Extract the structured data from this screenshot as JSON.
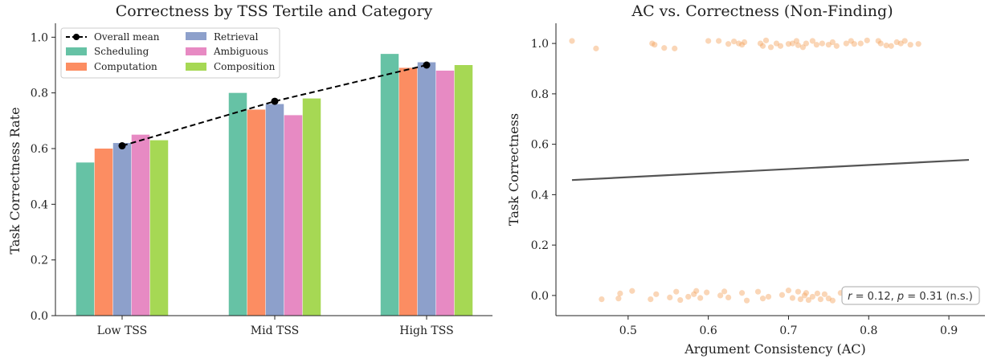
{
  "chart_data": [
    {
      "type": "bar",
      "title": "Correctness by TSS Tertile and Category",
      "xlabel": "",
      "ylabel": "Task Correctness Rate",
      "ylim": [
        0,
        1.05
      ],
      "yticks": [
        "0.0",
        "0.2",
        "0.4",
        "0.6",
        "0.8",
        "1.0"
      ],
      "categories": [
        "Low TSS",
        "Mid TSS",
        "High TSS"
      ],
      "series": [
        {
          "name": "Scheduling",
          "color": "#66c2a5",
          "values": [
            0.55,
            0.8,
            0.94
          ]
        },
        {
          "name": "Computation",
          "color": "#fc8d62",
          "values": [
            0.6,
            0.74,
            0.89
          ]
        },
        {
          "name": "Retrieval",
          "color": "#8da0cb",
          "values": [
            0.62,
            0.76,
            0.91
          ]
        },
        {
          "name": "Ambiguous",
          "color": "#e78ac3",
          "values": [
            0.65,
            0.72,
            0.88
          ]
        },
        {
          "name": "Composition",
          "color": "#a6d854",
          "values": [
            0.63,
            0.78,
            0.9
          ]
        }
      ],
      "overlay_line": {
        "name": "Overall mean",
        "color": "#000000",
        "style": "dashed",
        "values": [
          0.61,
          0.77,
          0.9
        ]
      },
      "legend_placement": "top-left",
      "legend_columns": 2
    },
    {
      "type": "scatter",
      "title": "AC vs. Correctness (Non-Finding)",
      "xlabel": "Argument Consistency (AC)",
      "ylabel": "Task Correctness",
      "xlim": [
        0.41,
        0.945
      ],
      "ylim": [
        -0.08,
        1.08
      ],
      "xticks": [
        "0.5",
        "0.6",
        "0.7",
        "0.8",
        "0.9"
      ],
      "yticks": [
        "0.0",
        "0.2",
        "0.4",
        "0.6",
        "0.8",
        "1.0"
      ],
      "point_color": "#f4a460",
      "line_color": "#555555",
      "points_top": [
        [
          0.43,
          1.01
        ],
        [
          0.46,
          0.98
        ],
        [
          0.53,
          1.0
        ],
        [
          0.533,
          0.995
        ],
        [
          0.545,
          0.982
        ],
        [
          0.558,
          0.98
        ],
        [
          0.6,
          1.01
        ],
        [
          0.613,
          1.01
        ],
        [
          0.625,
          0.998
        ],
        [
          0.632,
          1.008
        ],
        [
          0.638,
          1.0
        ],
        [
          0.642,
          0.995
        ],
        [
          0.645,
          1.005
        ],
        [
          0.665,
          1.0
        ],
        [
          0.668,
          0.99
        ],
        [
          0.672,
          1.012
        ],
        [
          0.678,
          0.985
        ],
        [
          0.685,
          1.0
        ],
        [
          0.69,
          0.99
        ],
        [
          0.7,
          0.998
        ],
        [
          0.705,
          1.0
        ],
        [
          0.71,
          1.01
        ],
        [
          0.712,
          0.993
        ],
        [
          0.718,
          0.985
        ],
        [
          0.722,
          1.0
        ],
        [
          0.73,
          1.01
        ],
        [
          0.735,
          0.995
        ],
        [
          0.742,
          1.0
        ],
        [
          0.75,
          0.995
        ],
        [
          0.755,
          1.005
        ],
        [
          0.76,
          0.99
        ],
        [
          0.772,
          1.0
        ],
        [
          0.778,
          1.01
        ],
        [
          0.782,
          0.998
        ],
        [
          0.79,
          1.0
        ],
        [
          0.798,
          1.012
        ],
        [
          0.812,
          1.01
        ],
        [
          0.815,
          1.0
        ],
        [
          0.822,
          0.992
        ],
        [
          0.828,
          0.99
        ],
        [
          0.835,
          1.005
        ],
        [
          0.84,
          1.0
        ],
        [
          0.845,
          1.01
        ],
        [
          0.852,
          0.995
        ],
        [
          0.862,
          0.998
        ]
      ],
      "points_bottom": [
        [
          0.467,
          -0.015
        ],
        [
          0.488,
          -0.012
        ],
        [
          0.49,
          0.008
        ],
        [
          0.505,
          0.018
        ],
        [
          0.528,
          -0.015
        ],
        [
          0.535,
          0.005
        ],
        [
          0.552,
          -0.008
        ],
        [
          0.56,
          0.015
        ],
        [
          0.565,
          -0.018
        ],
        [
          0.575,
          -0.005
        ],
        [
          0.582,
          0.005
        ],
        [
          0.585,
          0.018
        ],
        [
          0.59,
          -0.01
        ],
        [
          0.598,
          0.012
        ],
        [
          0.615,
          0.0
        ],
        [
          0.62,
          0.016
        ],
        [
          0.625,
          -0.008
        ],
        [
          0.642,
          0.01
        ],
        [
          0.648,
          -0.02
        ],
        [
          0.662,
          0.015
        ],
        [
          0.668,
          -0.012
        ],
        [
          0.675,
          -0.005
        ],
        [
          0.692,
          0.002
        ],
        [
          0.7,
          0.02
        ],
        [
          0.705,
          -0.01
        ],
        [
          0.712,
          0.015
        ],
        [
          0.715,
          -0.015
        ],
        [
          0.72,
          0.0
        ],
        [
          0.722,
          0.01
        ],
        [
          0.725,
          -0.018
        ],
        [
          0.73,
          -0.005
        ],
        [
          0.736,
          0.008
        ],
        [
          0.74,
          -0.015
        ],
        [
          0.745,
          0.005
        ],
        [
          0.75,
          -0.012
        ],
        [
          0.755,
          -0.02
        ],
        [
          0.765,
          0.01
        ],
        [
          0.772,
          -0.005
        ]
      ],
      "trend_line": [
        [
          0.43,
          0.458
        ],
        [
          0.925,
          0.538
        ]
      ],
      "annotation": {
        "r": "0.12",
        "p": "0.31",
        "note": "(n.s.)"
      }
    }
  ]
}
